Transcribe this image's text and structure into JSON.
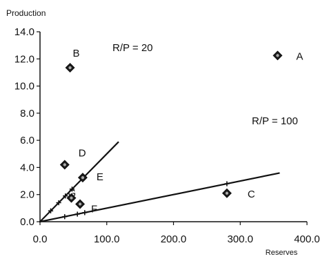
{
  "chart_data": {
    "type": "scatter",
    "title": "",
    "xlabel": "Reserves",
    "ylabel": "Production",
    "xlim": [
      0,
      400
    ],
    "ylim": [
      0,
      14
    ],
    "x_ticks": [
      0,
      100,
      200,
      300,
      400
    ],
    "x_tick_labels": [
      "0.0",
      "100.0",
      "200.0",
      "300.0",
      "400.0"
    ],
    "y_ticks": [
      0,
      2,
      4,
      6,
      8,
      10,
      12,
      14
    ],
    "y_tick_labels": [
      "0.0",
      "2.0",
      "4.0",
      "6.0",
      "8.0",
      "10.0",
      "12.0",
      "14.0"
    ],
    "grid": false,
    "points": [
      {
        "label": "A",
        "x": 356,
        "y": 12.25
      },
      {
        "label": "B",
        "x": 45,
        "y": 11.35
      },
      {
        "label": "C",
        "x": 280,
        "y": 2.1
      },
      {
        "label": "D",
        "x": 37,
        "y": 4.2
      },
      {
        "label": "E",
        "x": 64,
        "y": 3.25
      },
      {
        "label": "F",
        "x": 60,
        "y": 1.3
      },
      {
        "label": "G",
        "x": 47,
        "y": 1.75
      }
    ],
    "reference_lines": [
      {
        "label": "R/P = 20",
        "ratio": 20,
        "x_end": 117,
        "x_mark_values": [
          16,
          28,
          38,
          48,
          66
        ]
      },
      {
        "label": "R/P = 100",
        "ratio": 100,
        "x_end": 358,
        "x_mark_values": [
          37,
          56,
          67,
          280
        ]
      }
    ]
  }
}
